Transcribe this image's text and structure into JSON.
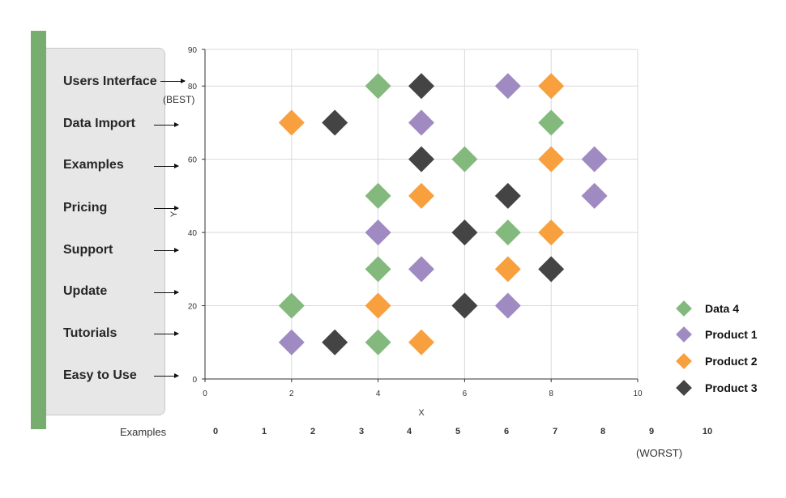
{
  "criteria": {
    "items": [
      "Users Interface",
      "Data Import",
      "Examples",
      "Pricing",
      "Support",
      "Update",
      "Tutorials",
      "Easy to Use"
    ],
    "best_label": "(BEST)",
    "worst_label": "(WORST)"
  },
  "bottom_scale": {
    "title": "Examples",
    "numbers": [
      "0",
      "1",
      "2",
      "3",
      "4",
      "5",
      "6",
      "7",
      "8",
      "9",
      "10"
    ]
  },
  "colors": {
    "accent_bar": "#78ad70",
    "Data 4": "#84b97d",
    "Product 1": "#a08ac2",
    "Product 2": "#f7a03d",
    "Product 3": "#444444"
  },
  "chart_data": {
    "type": "scatter",
    "marker": "diamond",
    "xlabel": "X",
    "ylabel": "Y",
    "xlim": [
      0,
      10
    ],
    "ylim": [
      0,
      90
    ],
    "xticks": [
      0,
      2,
      4,
      6,
      8,
      10
    ],
    "yticks": [
      0,
      20,
      40,
      60,
      80,
      90
    ],
    "grid": true,
    "legend_position": "right",
    "series": [
      {
        "name": "Data 4",
        "points": [
          [
            4,
            80
          ],
          [
            8,
            70
          ],
          [
            6,
            60
          ],
          [
            4,
            50
          ],
          [
            7,
            40
          ],
          [
            4,
            30
          ],
          [
            2,
            20
          ],
          [
            4,
            10
          ]
        ]
      },
      {
        "name": "Product 1",
        "points": [
          [
            7,
            80
          ],
          [
            5,
            70
          ],
          [
            9,
            60
          ],
          [
            9,
            50
          ],
          [
            4,
            40
          ],
          [
            5,
            30
          ],
          [
            7,
            20
          ],
          [
            2,
            10
          ]
        ]
      },
      {
        "name": "Product 2",
        "points": [
          [
            8,
            80
          ],
          [
            2,
            70
          ],
          [
            8,
            60
          ],
          [
            5,
            50
          ],
          [
            8,
            40
          ],
          [
            7,
            30
          ],
          [
            4,
            20
          ],
          [
            5,
            10
          ]
        ]
      },
      {
        "name": "Product 3",
        "points": [
          [
            5,
            80
          ],
          [
            3,
            70
          ],
          [
            5,
            60
          ],
          [
            7,
            50
          ],
          [
            6,
            40
          ],
          [
            8,
            30
          ],
          [
            6,
            20
          ],
          [
            3,
            10
          ]
        ]
      }
    ]
  }
}
